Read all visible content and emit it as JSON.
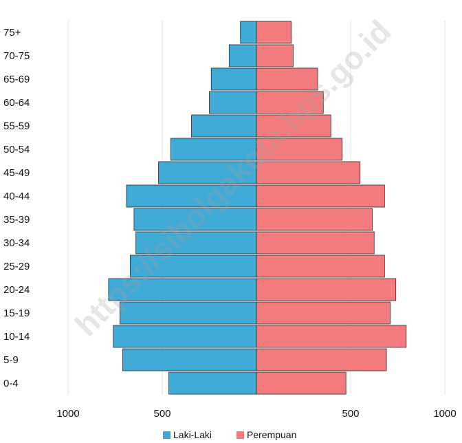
{
  "chart_data": {
    "type": "bar",
    "orientation": "horizontal-population-pyramid",
    "title": "",
    "xlabel": "",
    "ylabel": "",
    "categories": [
      "75+",
      "70-75",
      "65-69",
      "60-64",
      "55-59",
      "50-54",
      "45-49",
      "40-44",
      "35-39",
      "30-34",
      "25-29",
      "20-24",
      "15-19",
      "10-14",
      "5-9",
      "0-4"
    ],
    "series": [
      {
        "name": "Laki-Laki",
        "color": "#40aad6",
        "side": "left",
        "values": [
          85,
          145,
          240,
          250,
          345,
          455,
          520,
          690,
          650,
          640,
          670,
          785,
          725,
          760,
          710,
          465
        ]
      },
      {
        "name": "Perempuan",
        "color": "#f47b7d",
        "side": "right",
        "values": [
          185,
          195,
          325,
          355,
          395,
          455,
          550,
          680,
          615,
          625,
          680,
          740,
          710,
          795,
          690,
          475
        ]
      }
    ],
    "xticks": [
      "1000",
      "500",
      "500",
      "1000"
    ],
    "xlim": [
      -1000,
      1000
    ],
    "grid": true,
    "legend_position": "bottom-center",
    "watermark": "https://sibolgakota.bps.go.id"
  }
}
